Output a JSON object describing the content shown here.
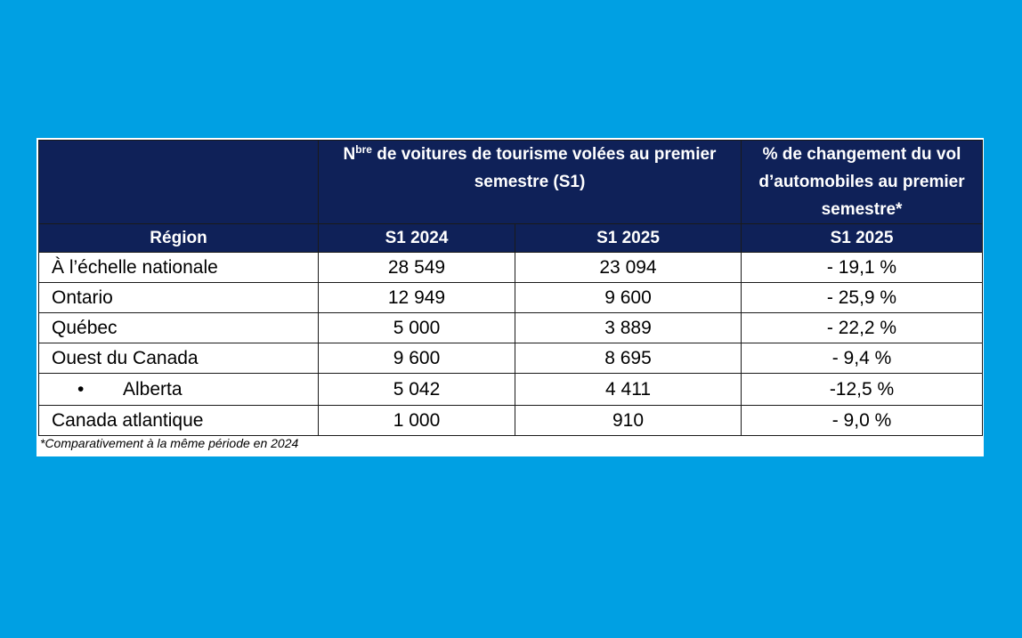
{
  "table": {
    "header": {
      "col1_title_prefix": "N",
      "col1_title_sup": "bre",
      "col1_title_rest": " de voitures de tourisme volées au premier semestre (S1)",
      "col2_title": "% de changement du vol d’automobiles au premier semestre*",
      "region_label": "Région",
      "sub_2024": "S1 2024",
      "sub_2025": "S1 2025",
      "sub_pct": "S1 2025"
    },
    "rows": [
      {
        "region": "À l’échelle nationale",
        "s1_2024": "28 549",
        "s1_2025": "23 094",
        "change": "- 19,1 %"
      },
      {
        "region": "Ontario",
        "s1_2024": "12 949",
        "s1_2025": "9 600",
        "change": "- 25,9 %"
      },
      {
        "region": "Québec",
        "s1_2024": "5 000",
        "s1_2025": "3 889",
        "change": "- 22,2 %"
      },
      {
        "region": "Ouest du Canada",
        "s1_2024": "9 600",
        "s1_2025": "8 695",
        "change": "- 9,4 %"
      },
      {
        "region": "Alberta",
        "bullet": "•",
        "s1_2024": "5 042",
        "s1_2025": "4 411",
        "change": "-12,5 %"
      },
      {
        "region": "Canada atlantique",
        "s1_2024": "1 000",
        "s1_2025": "910",
        "change": " - 9,0 %"
      }
    ]
  },
  "footnote": "*Comparativement à la même période en 2024",
  "colors": {
    "background": "#00a0e3",
    "header": "#0f2158",
    "card": "#ffffff"
  }
}
